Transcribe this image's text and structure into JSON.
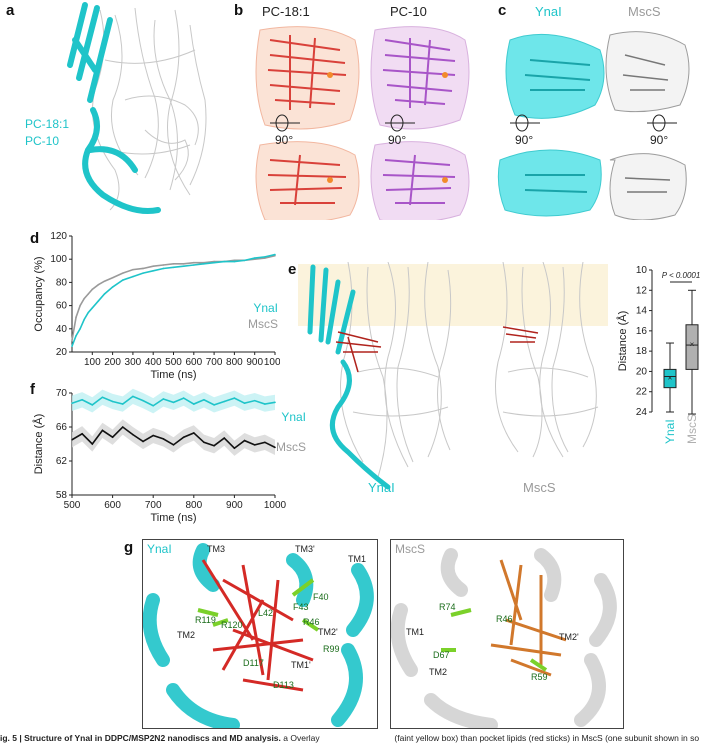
{
  "panels": {
    "a": {
      "letter": "a",
      "legend": [
        "PC-18:1",
        "PC-10"
      ]
    },
    "b": {
      "letter": "b",
      "titles": [
        "PC-18:1",
        "PC-10"
      ],
      "rotation": [
        "90°",
        "90°"
      ]
    },
    "c": {
      "letter": "c",
      "titles": [
        "YnaI",
        "MscS"
      ],
      "rotation": [
        "90°",
        "90°"
      ]
    },
    "d": {
      "letter": "d"
    },
    "e": {
      "letter": "e",
      "labels": [
        "YnaI",
        "MscS"
      ]
    },
    "f": {
      "letter": "f"
    },
    "g": {
      "letter": "g",
      "titles": [
        "YnaI",
        "MscS"
      ],
      "residues_ynai": [
        "TM3",
        "TM3'",
        "TM1",
        "TM2",
        "TM2'",
        "TM1'",
        "R120",
        "L42",
        "F43",
        "R46",
        "R119",
        "R99",
        "D117",
        "F40",
        "D113"
      ],
      "residues_mscs": [
        "R74",
        "R46",
        "TM1",
        "TM2",
        "TM2'",
        "D67",
        "R59"
      ]
    }
  },
  "caption": {
    "bold": "ig. 5 | Structure of YnaI in DDPC/MSP2N2 nanodiscs and MD analysis.",
    "text_left": "a Overlay",
    "text_right": "(faint yellow box) than pocket lipids (red sticks) in MscS (one subunit shown in so"
  },
  "chart_data": [
    {
      "id": "d",
      "type": "line",
      "title": "",
      "xlabel": "Time (ns)",
      "ylabel": "Occupancy (%)",
      "xlim": [
        0,
        1000
      ],
      "ylim": [
        20,
        120
      ],
      "xticks": [
        100,
        200,
        300,
        400,
        500,
        600,
        700,
        800,
        900,
        1000
      ],
      "yticks": [
        20,
        40,
        60,
        80,
        100,
        120
      ],
      "legend": [
        "YnaI",
        "MscS"
      ],
      "series": [
        {
          "name": "MscS",
          "color": "#9a9a9a",
          "x": [
            0,
            20,
            40,
            60,
            80,
            100,
            130,
            160,
            200,
            250,
            300,
            350,
            400,
            450,
            500,
            550,
            600,
            650,
            700,
            750,
            800,
            850,
            900,
            950,
            1000
          ],
          "values": [
            30,
            50,
            60,
            66,
            70,
            74,
            78,
            81,
            84,
            88,
            91,
            92,
            94,
            95,
            96,
            96,
            97,
            97,
            98,
            98,
            99,
            99,
            100,
            101,
            103
          ]
        },
        {
          "name": "YnaI",
          "color": "#1fc4c9",
          "x": [
            0,
            20,
            40,
            60,
            80,
            100,
            130,
            160,
            200,
            250,
            300,
            350,
            400,
            450,
            500,
            550,
            600,
            650,
            700,
            750,
            800,
            850,
            900,
            950,
            1000
          ],
          "values": [
            25,
            34,
            40,
            48,
            54,
            58,
            64,
            70,
            76,
            82,
            85,
            88,
            90,
            92,
            93,
            94,
            95,
            96,
            97,
            98,
            98,
            99,
            101,
            102,
            104
          ]
        }
      ]
    },
    {
      "id": "f",
      "type": "line",
      "title": "",
      "xlabel": "Time (ns)",
      "ylabel": "Distance (Å)",
      "xlim": [
        500,
        1000
      ],
      "ylim": [
        58,
        70
      ],
      "xticks": [
        500,
        600,
        700,
        800,
        900,
        1000
      ],
      "yticks": [
        58,
        62,
        66,
        70
      ],
      "legend": [
        "YnaI",
        "MscS"
      ],
      "series": [
        {
          "name": "YnaI",
          "color": "#1fc4c9",
          "x": [
            500,
            525,
            550,
            575,
            600,
            625,
            650,
            675,
            700,
            725,
            750,
            775,
            800,
            825,
            850,
            875,
            900,
            925,
            950,
            975,
            1000
          ],
          "values": [
            68.8,
            69.2,
            68.6,
            69.5,
            69.0,
            68.7,
            69.6,
            69.1,
            68.5,
            69.3,
            68.9,
            69.4,
            68.7,
            69.2,
            68.6,
            69.0,
            69.4,
            68.8,
            69.1,
            68.7,
            68.9
          ]
        },
        {
          "name": "MscS",
          "color": "#111111",
          "x": [
            500,
            525,
            550,
            575,
            600,
            625,
            650,
            675,
            700,
            725,
            750,
            775,
            800,
            825,
            850,
            875,
            900,
            925,
            950,
            975,
            1000
          ],
          "values": [
            64.5,
            65.2,
            64.0,
            65.6,
            64.8,
            66.0,
            65.1,
            64.3,
            65.0,
            64.6,
            63.9,
            64.8,
            65.3,
            64.2,
            63.8,
            64.7,
            63.5,
            64.4,
            63.9,
            64.2,
            63.6
          ]
        }
      ]
    },
    {
      "id": "e-box",
      "type": "box",
      "title": "",
      "xlabel": "",
      "ylabel": "Distance (Å)",
      "ylim": [
        10,
        24
      ],
      "yticks": [
        10,
        12,
        14,
        16,
        18,
        20,
        22,
        24
      ],
      "annotation": "P < 0.0001",
      "categories": [
        "YnaI",
        "MscS"
      ],
      "series": [
        {
          "name": "YnaI",
          "color": "#1fc4c9",
          "min": 17.2,
          "q1": 19.8,
          "median": 20.5,
          "q3": 21.6,
          "max": 24.0,
          "mean": 20.6
        },
        {
          "name": "MscS",
          "color": "#b0b0b0",
          "min": 12.0,
          "q1": 15.4,
          "median": 17.4,
          "q3": 19.8,
          "max": 24.2,
          "mean": 17.3
        }
      ]
    }
  ]
}
